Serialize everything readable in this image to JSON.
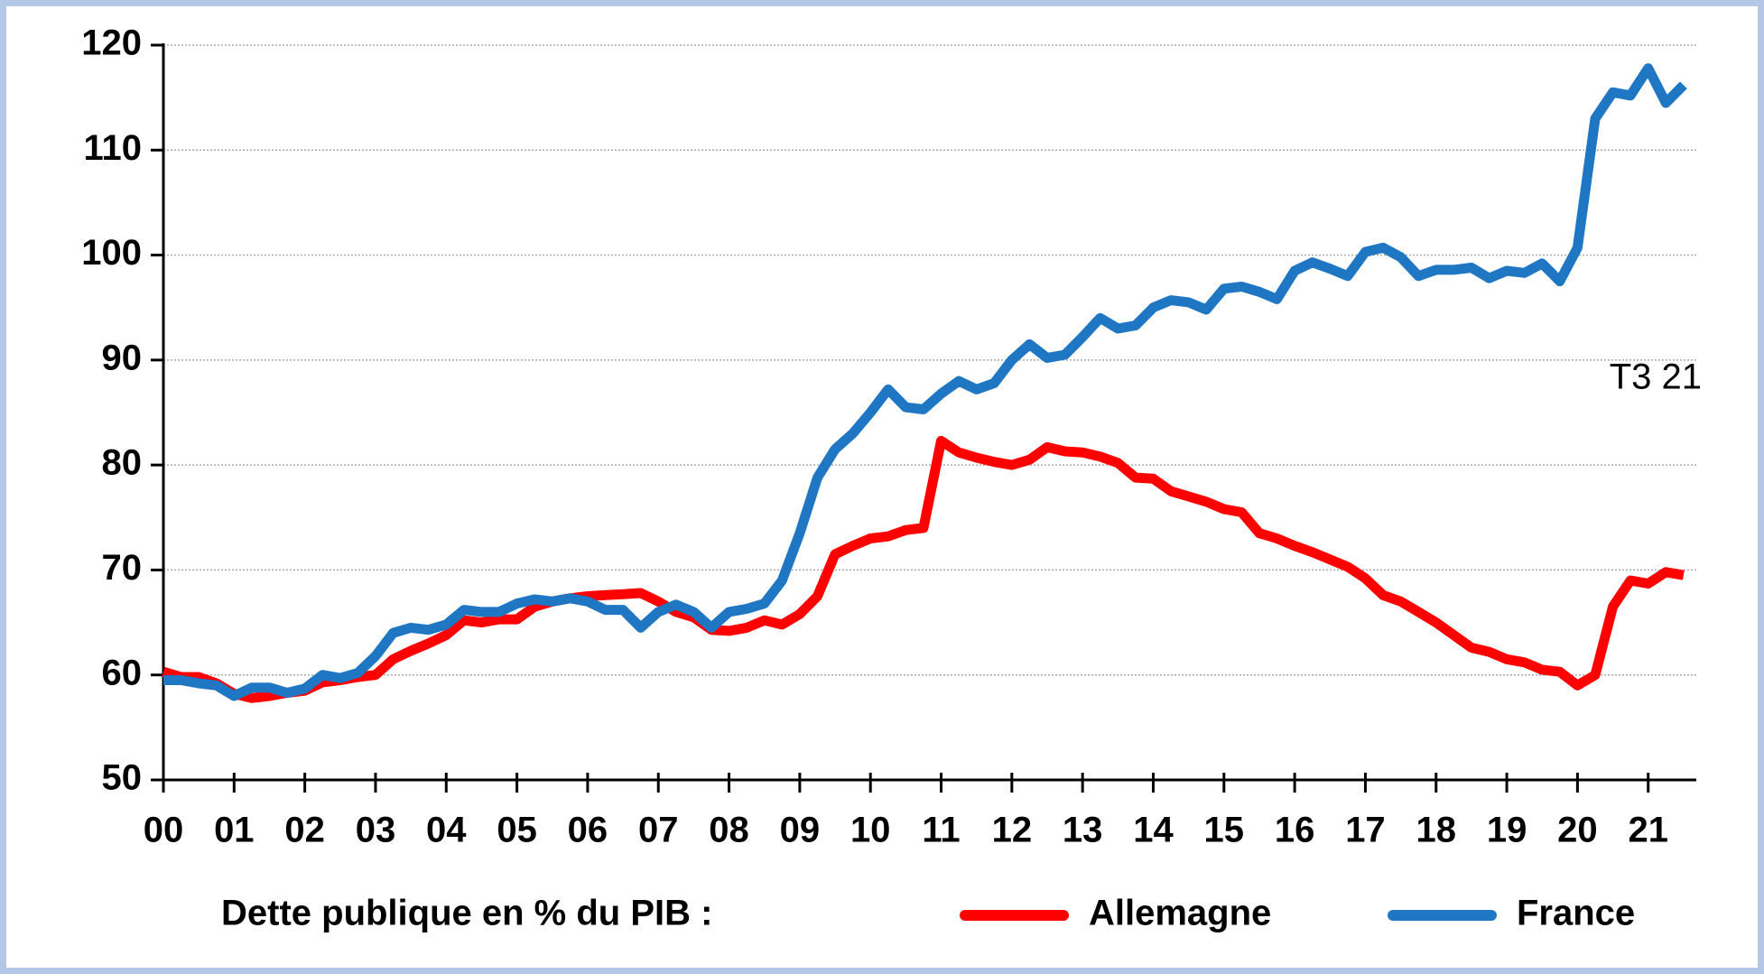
{
  "chart_data": {
    "type": "line",
    "categories": [
      "00",
      null,
      null,
      null,
      "01",
      null,
      null,
      null,
      "02",
      null,
      null,
      null,
      "03",
      null,
      null,
      null,
      "04",
      null,
      null,
      null,
      "05",
      null,
      null,
      null,
      "06",
      null,
      null,
      null,
      "07",
      null,
      null,
      null,
      "08",
      null,
      null,
      null,
      "09",
      null,
      null,
      null,
      "10",
      null,
      null,
      null,
      "11",
      null,
      null,
      null,
      "12",
      null,
      null,
      null,
      "13",
      null,
      null,
      null,
      "14",
      null,
      null,
      null,
      "15",
      null,
      null,
      null,
      "16",
      null,
      null,
      null,
      "17",
      null,
      null,
      null,
      "18",
      null,
      null,
      null,
      "19",
      null,
      null,
      null,
      "20",
      null,
      null,
      null,
      "21",
      null,
      null
    ],
    "series": [
      {
        "name": "Allemagne",
        "color": "#ff0000",
        "values": [
          60.3,
          59.8,
          59.8,
          59.2,
          58.2,
          57.8,
          58.0,
          58.3,
          58.5,
          59.3,
          59.5,
          59.8,
          60.0,
          61.5,
          62.3,
          63.0,
          63.8,
          65.2,
          65.0,
          65.3,
          65.3,
          66.5,
          67.0,
          67.3,
          67.5,
          67.6,
          67.7,
          67.8,
          67.0,
          66.0,
          65.5,
          64.3,
          64.2,
          64.5,
          65.2,
          64.8,
          65.8,
          67.5,
          71.5,
          72.3,
          73.0,
          73.2,
          73.8,
          74.0,
          82.3,
          81.2,
          80.7,
          80.3,
          80.0,
          80.5,
          81.7,
          81.3,
          81.2,
          80.8,
          80.2,
          78.8,
          78.7,
          77.5,
          77.0,
          76.5,
          75.8,
          75.5,
          73.5,
          73.0,
          72.3,
          71.7,
          71.0,
          70.3,
          69.2,
          67.6,
          67.0,
          66.0,
          65.0,
          63.8,
          62.6,
          62.2,
          61.5,
          61.2,
          60.5,
          60.3,
          59.0,
          60.0,
          66.5,
          69.0,
          68.7,
          69.8,
          69.5
        ]
      },
      {
        "name": "France",
        "color": "#1f77c4",
        "values": [
          59.5,
          59.5,
          59.2,
          59.0,
          58.0,
          58.8,
          58.8,
          58.3,
          58.7,
          60.0,
          59.7,
          60.2,
          61.8,
          64.0,
          64.5,
          64.3,
          64.8,
          66.2,
          66.0,
          66.0,
          66.8,
          67.2,
          67.0,
          67.3,
          67.0,
          66.2,
          66.2,
          64.5,
          66.0,
          66.7,
          66.0,
          64.5,
          66.0,
          66.3,
          66.8,
          69.0,
          73.5,
          78.8,
          81.5,
          83.0,
          85.0,
          87.2,
          85.5,
          85.3,
          86.8,
          88.0,
          87.2,
          87.8,
          90.0,
          91.5,
          90.2,
          90.5,
          92.2,
          94.0,
          93.0,
          93.3,
          95.0,
          95.7,
          95.5,
          94.8,
          96.8,
          97.0,
          96.5,
          95.8,
          98.5,
          99.3,
          98.7,
          98.0,
          100.3,
          100.7,
          99.8,
          98.0,
          98.6,
          98.6,
          98.8,
          97.8,
          98.5,
          98.3,
          99.2,
          97.5,
          100.7,
          113.0,
          115.5,
          115.2,
          117.8,
          114.5,
          116.2
        ]
      }
    ],
    "ylim": [
      50,
      120
    ],
    "yticks": [
      50,
      60,
      70,
      80,
      90,
      100,
      110,
      120
    ],
    "grid": true,
    "annotation": "T3 21",
    "legend_title": "Dette publique en % du PIB :",
    "legend": "bottom"
  }
}
